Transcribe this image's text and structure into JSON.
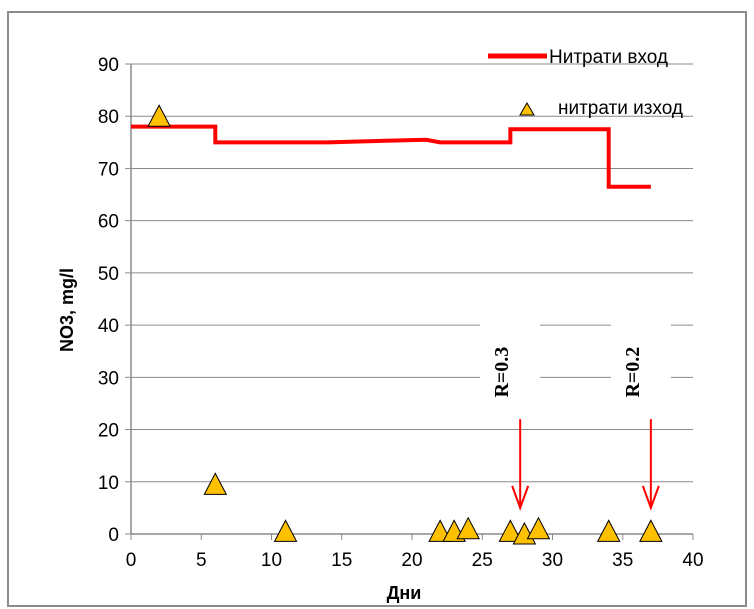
{
  "chart_data": {
    "type": "line",
    "xlabel": "Дни",
    "ylabel": "NO3, mg/l",
    "xlim": [
      0,
      40
    ],
    "ylim": [
      0,
      90
    ],
    "xticks": [
      0,
      5,
      10,
      15,
      20,
      25,
      30,
      35,
      40
    ],
    "yticks": [
      0,
      10,
      20,
      30,
      40,
      50,
      60,
      70,
      80,
      90
    ],
    "grid": "horizontal",
    "legend_position": "top-right",
    "series": [
      {
        "name": "Нитрати вход",
        "type": "step-line",
        "color": "#ff0000",
        "x": [
          0,
          6,
          6,
          14,
          21,
          22,
          27,
          27,
          34,
          34,
          37
        ],
        "y": [
          78,
          78,
          75,
          75,
          75.5,
          75,
          75,
          77.5,
          77.5,
          66.5,
          66.5
        ]
      },
      {
        "name": "нитрати изход",
        "type": "scatter",
        "marker": "triangle",
        "color": "#ffc000",
        "x": [
          2,
          6,
          11,
          22,
          23,
          24,
          27,
          28,
          29,
          34,
          37
        ],
        "y": [
          80,
          9.5,
          0.5,
          0.5,
          0.5,
          1,
          0.5,
          0,
          1,
          0.5,
          0.5
        ]
      }
    ],
    "annotations": [
      {
        "text": "R=0.3",
        "arrow_x": 27.7,
        "arrow_y_from": 22,
        "arrow_y_to": 5
      },
      {
        "text": "R=0.2",
        "arrow_x": 37,
        "arrow_y_from": 22,
        "arrow_y_to": 5
      }
    ]
  }
}
